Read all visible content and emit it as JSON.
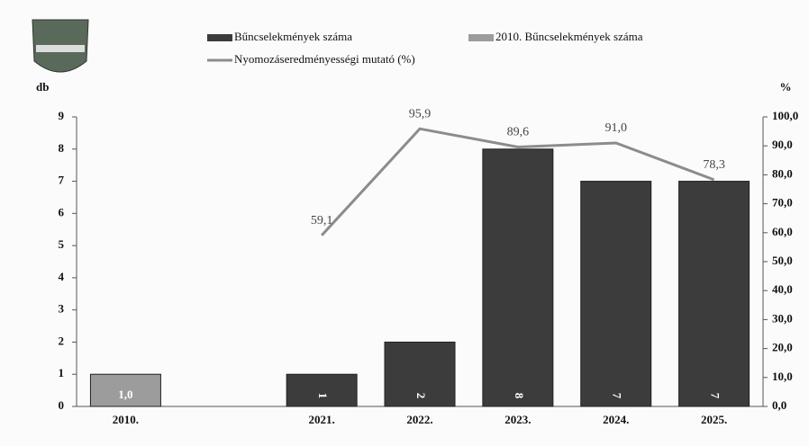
{
  "chart_data": {
    "type": "bar-line",
    "categories": [
      "2010.",
      null,
      "2021.",
      "2022.",
      "2023.",
      "2024.",
      "2025."
    ],
    "series": [
      {
        "name": "Bűncselekmények száma",
        "type": "bar",
        "color": "#3c3c3c",
        "values": [
          null,
          null,
          1,
          2,
          8,
          7,
          7
        ]
      },
      {
        "name": "2010. Bűncselekmények száma",
        "type": "bar",
        "color": "#9c9c9c",
        "values": [
          1,
          null,
          null,
          null,
          null,
          null,
          null
        ],
        "value_labels": [
          "1,0",
          null,
          null,
          null,
          null,
          null,
          null
        ]
      },
      {
        "name": "Nyomozáseredményességi mutató (%)",
        "type": "line",
        "axis": "y2",
        "color": "#8c8c8c",
        "values": [
          null,
          null,
          59.1,
          95.9,
          89.6,
          91.0,
          78.3
        ],
        "value_labels": [
          null,
          null,
          "59,1",
          "95,9",
          "89,6",
          "91,0",
          "78,3"
        ]
      }
    ],
    "ylabel": "db",
    "y2label": "%",
    "ylim": [
      0,
      9
    ],
    "yticks": [
      0,
      1,
      2,
      3,
      4,
      5,
      6,
      7,
      8,
      9
    ],
    "y2lim": [
      0,
      100
    ],
    "y2ticks": [
      {
        "value": 0,
        "label": "0,0"
      },
      {
        "value": 10,
        "label": "10,0"
      },
      {
        "value": 20,
        "label": "20,0"
      },
      {
        "value": 30,
        "label": "30,0"
      },
      {
        "value": 40,
        "label": "40,0"
      },
      {
        "value": 50,
        "label": "50,0"
      },
      {
        "value": 60,
        "label": "60,0"
      },
      {
        "value": 70,
        "label": "70,0"
      },
      {
        "value": 80,
        "label": "80,0"
      },
      {
        "value": 90,
        "label": "90,0"
      },
      {
        "value": 100,
        "label": "100,0"
      }
    ],
    "legend": "top"
  }
}
